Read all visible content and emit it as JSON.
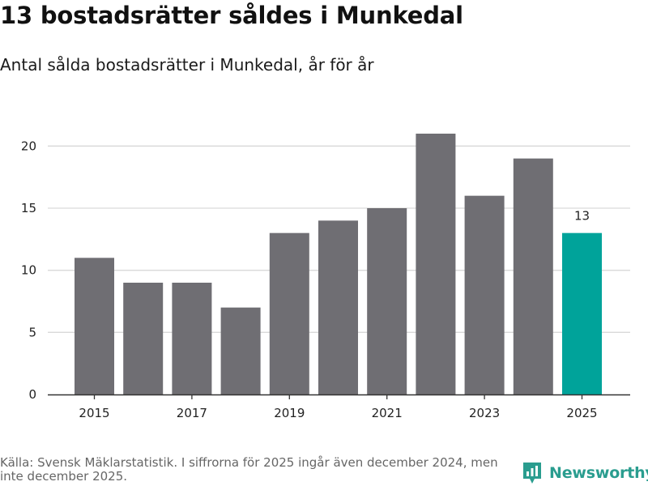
{
  "title": "13 bostadsrätter såldes i Munkedal",
  "subtitle": "Antal sålda bostadsrätter i Munkedal, år för år",
  "source": "Källa: Svensk Mäklarstatistik. I siffrorna för 2025 ingår även december 2024, men inte december 2025.",
  "logo": {
    "text": "Newsworthy",
    "icon": "bar-chart-pin-icon"
  },
  "colors": {
    "bar": "#6f6e73",
    "highlight": "#00a39a",
    "grid": "#d9d9d9",
    "axis": "#333333",
    "brand": "#2a9d8f"
  },
  "chart_data": {
    "type": "bar",
    "title": "13 bostadsrätter såldes i Munkedal",
    "subtitle": "Antal sålda bostadsrätter i Munkedal, år för år",
    "xlabel": "",
    "ylabel": "",
    "categories": [
      2015,
      2016,
      2017,
      2018,
      2019,
      2020,
      2021,
      2022,
      2023,
      2024,
      2025
    ],
    "values": [
      11,
      9,
      9,
      7,
      13,
      14,
      15,
      21,
      16,
      19,
      13
    ],
    "xticks": [
      2015,
      2017,
      2019,
      2021,
      2023,
      2025
    ],
    "yticks": [
      0,
      5,
      10,
      15,
      20
    ],
    "ylim": [
      0,
      22.5
    ],
    "grid": true,
    "highlight_category": 2025,
    "data_labels": [
      {
        "category": 2025,
        "text": "13"
      }
    ]
  }
}
